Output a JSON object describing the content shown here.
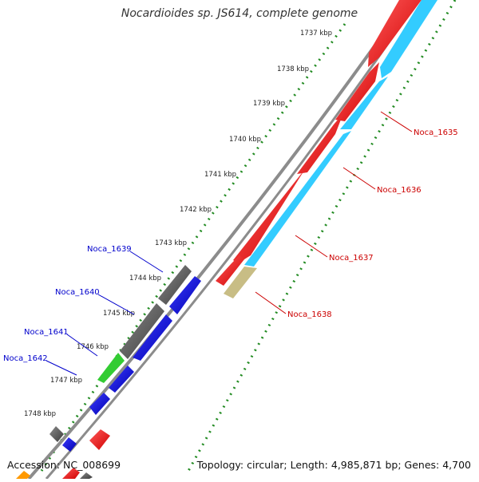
{
  "title": "Nocardioides sp. JS614, complete genome",
  "accession": "Accession: NC_008699",
  "topology_summary": "Topology: circular; Length: 4,985,871 bp; Genes: 4,700",
  "ticks": [
    {
      "label": "1737 kbp"
    },
    {
      "label": "1738 kbp"
    },
    {
      "label": "1739 kbp"
    },
    {
      "label": "1740 kbp"
    },
    {
      "label": "1741 kbp"
    },
    {
      "label": "1742 kbp"
    },
    {
      "label": "1743 kbp"
    },
    {
      "label": "1744 kbp"
    },
    {
      "label": "1745 kbp"
    },
    {
      "label": "1746 kbp"
    },
    {
      "label": "1747 kbp"
    },
    {
      "label": "1748 kbp"
    }
  ],
  "genes_plus": [
    {
      "label": "Noca_1635"
    },
    {
      "label": "Noca_1636"
    },
    {
      "label": "Noca_1637"
    },
    {
      "label": "Noca_1638"
    }
  ],
  "genes_minus": [
    {
      "label": "Noca_1639"
    },
    {
      "label": "Noca_1640"
    },
    {
      "label": "Noca_1641"
    },
    {
      "label": "Noca_1642"
    }
  ],
  "colors": {
    "plus_gene_label": "#cc0000",
    "minus_gene_label": "#0000cc",
    "red_feature": "#ff0000",
    "cyan_feature": "#33ccff",
    "khaki_feature": "#c8bd85",
    "grey_feature": "#666666",
    "blue_feature": "#0000ff",
    "green_feature": "#33cc33",
    "orange_feature": "#ff9900",
    "tick_dots": "#228b22",
    "backbone": "#999999"
  }
}
